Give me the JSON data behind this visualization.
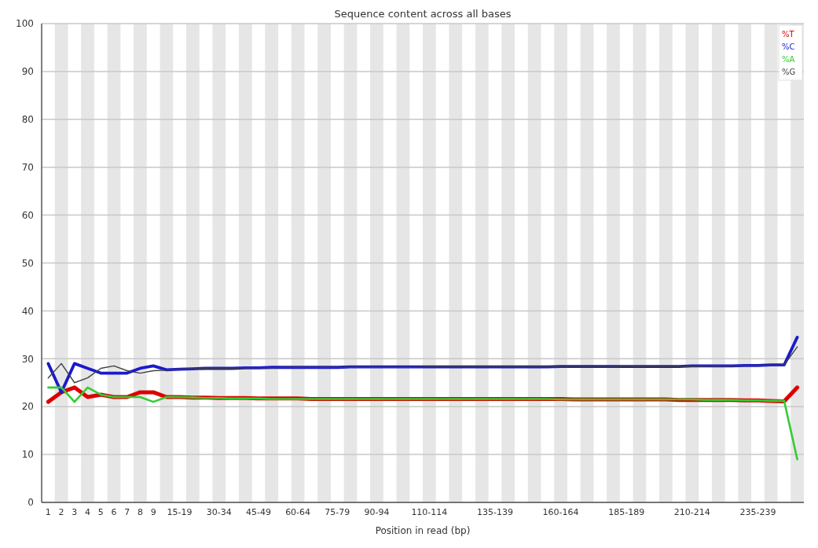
{
  "chart_data": {
    "type": "line",
    "title": "Sequence content across all bases",
    "xlabel": "Position in read (bp)",
    "categories": [
      "1",
      "2",
      "3",
      "4",
      "5",
      "6",
      "7",
      "8",
      "9",
      null,
      "15-19",
      null,
      null,
      "30-34",
      null,
      null,
      "45-49",
      null,
      null,
      "60-64",
      null,
      null,
      "75-79",
      null,
      null,
      "90-94",
      null,
      null,
      null,
      "110-114",
      null,
      null,
      null,
      null,
      "135-139",
      null,
      null,
      null,
      null,
      "160-164",
      null,
      null,
      null,
      null,
      "185-189",
      null,
      null,
      null,
      null,
      "210-214",
      null,
      null,
      null,
      null,
      "235-239",
      null,
      null,
      null
    ],
    "series": [
      {
        "name": "%T",
        "color": "#dd0000",
        "values": [
          21,
          23,
          24,
          22,
          22.5,
          22,
          22,
          23,
          23,
          22,
          22,
          21.9,
          21.9,
          21.8,
          21.8,
          21.8,
          21.7,
          21.7,
          21.7,
          21.7,
          21.6,
          21.6,
          21.6,
          21.6,
          21.6,
          21.6,
          21.6,
          21.6,
          21.6,
          21.6,
          21.6,
          21.6,
          21.6,
          21.6,
          21.6,
          21.6,
          21.6,
          21.6,
          21.6,
          21.6,
          21.5,
          21.5,
          21.5,
          21.5,
          21.5,
          21.5,
          21.5,
          21.5,
          21.4,
          21.4,
          21.4,
          21.4,
          21.4,
          21.3,
          21.3,
          21.2,
          21.1,
          24
        ]
      },
      {
        "name": "%C",
        "color": "#1a1acc",
        "values": [
          29,
          23,
          29,
          28,
          27,
          27,
          27,
          28,
          28.5,
          27.7,
          27.8,
          27.9,
          28,
          28,
          28,
          28.1,
          28.1,
          28.2,
          28.2,
          28.2,
          28.2,
          28.2,
          28.2,
          28.3,
          28.3,
          28.3,
          28.3,
          28.3,
          28.3,
          28.3,
          28.3,
          28.3,
          28.3,
          28.3,
          28.3,
          28.3,
          28.3,
          28.3,
          28.3,
          28.4,
          28.4,
          28.4,
          28.4,
          28.4,
          28.4,
          28.4,
          28.4,
          28.4,
          28.4,
          28.5,
          28.5,
          28.5,
          28.5,
          28.6,
          28.6,
          28.7,
          28.7,
          34.5
        ]
      },
      {
        "name": "%A",
        "color": "#33cc33",
        "values": [
          24,
          24,
          21,
          24,
          22.5,
          22,
          22,
          22,
          21,
          22,
          22,
          21.9,
          21.8,
          21.8,
          21.7,
          21.7,
          21.7,
          21.6,
          21.6,
          21.6,
          21.6,
          21.6,
          21.6,
          21.6,
          21.6,
          21.6,
          21.6,
          21.6,
          21.6,
          21.6,
          21.6,
          21.6,
          21.6,
          21.6,
          21.6,
          21.6,
          21.6,
          21.6,
          21.6,
          21.5,
          21.5,
          21.5,
          21.5,
          21.5,
          21.5,
          21.5,
          21.5,
          21.5,
          21.5,
          21.5,
          21.4,
          21.4,
          21.4,
          21.3,
          21.3,
          21.2,
          21.2,
          9
        ]
      },
      {
        "name": "%G",
        "color": "#404040",
        "values": [
          26,
          29,
          25,
          26,
          28,
          28.5,
          27.5,
          27,
          27.5,
          27.6,
          27.8,
          27.9,
          28,
          28,
          28,
          28.1,
          28.1,
          28.1,
          28.2,
          28.2,
          28.2,
          28.2,
          28.2,
          28.2,
          28.2,
          28.2,
          28.2,
          28.2,
          28.2,
          28.3,
          28.3,
          28.3,
          28.3,
          28.3,
          28.3,
          28.3,
          28.3,
          28.3,
          28.3,
          28.3,
          28.3,
          28.3,
          28.3,
          28.3,
          28.4,
          28.4,
          28.4,
          28.4,
          28.4,
          28.4,
          28.5,
          28.5,
          28.5,
          28.6,
          28.6,
          28.6,
          28.7,
          32.5
        ]
      }
    ],
    "ylim": [
      0,
      100
    ],
    "yticks": [
      0,
      10,
      20,
      30,
      40,
      50,
      60,
      70,
      80,
      90,
      100
    ],
    "grid": "y",
    "legend": "top right"
  }
}
